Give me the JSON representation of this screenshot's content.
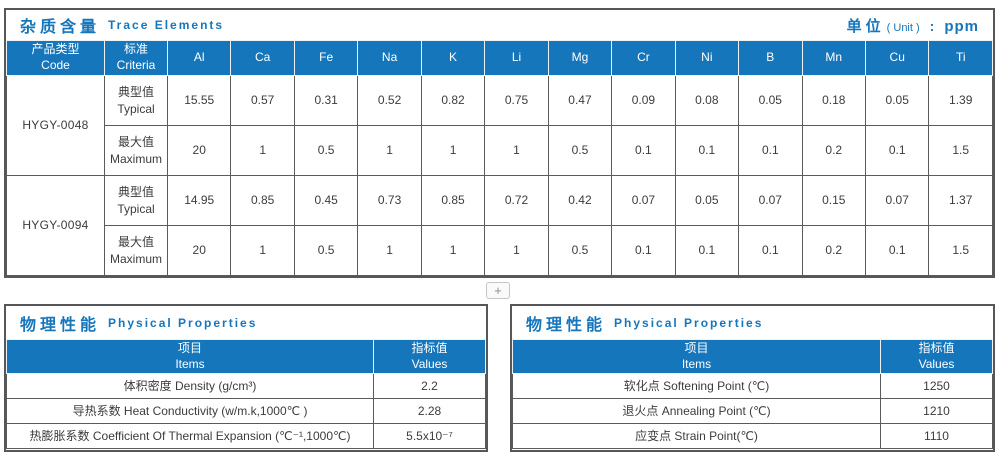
{
  "colors": {
    "accent_blue": "#1576bc",
    "header_background": "#1576bc",
    "border_dark": "#58595b",
    "body_text": "#3c3c3c"
  },
  "trace": {
    "title_zh": "杂质含量",
    "title_en": "Trace Elements",
    "unit": {
      "zh": "单位",
      "en": "( Unit )",
      "colon": ":",
      "value": "ppm"
    },
    "header": {
      "code_zh": "产品类型",
      "code_en": "Code",
      "criteria_zh": "标准",
      "criteria_en": "Criteria"
    },
    "elements": [
      "Al",
      "Ca",
      "Fe",
      "Na",
      "K",
      "Li",
      "Mg",
      "Cr",
      "Ni",
      "B",
      "Mn",
      "Cu",
      "Ti"
    ],
    "products": [
      {
        "code": "HYGY-0048",
        "rows": [
          {
            "type_zh": "典型值",
            "type_en": "Typical",
            "values": [
              "15.55",
              "0.57",
              "0.31",
              "0.52",
              "0.82",
              "0.75",
              "0.47",
              "0.09",
              "0.08",
              "0.05",
              "0.18",
              "0.05",
              "1.39"
            ]
          },
          {
            "type_zh": "最大值",
            "type_en": "Maximum",
            "values": [
              "20",
              "1",
              "0.5",
              "1",
              "1",
              "1",
              "0.5",
              "0.1",
              "0.1",
              "0.1",
              "0.2",
              "0.1",
              "1.5"
            ]
          }
        ]
      },
      {
        "code": "HYGY-0094",
        "rows": [
          {
            "type_zh": "典型值",
            "type_en": "Typical",
            "values": [
              "14.95",
              "0.85",
              "0.45",
              "0.73",
              "0.85",
              "0.72",
              "0.42",
              "0.07",
              "0.05",
              "0.07",
              "0.15",
              "0.07",
              "1.37"
            ]
          },
          {
            "type_zh": "最大值",
            "type_en": "Maximum",
            "values": [
              "20",
              "1",
              "0.5",
              "1",
              "1",
              "1",
              "0.5",
              "0.1",
              "0.1",
              "0.1",
              "0.2",
              "0.1",
              "1.5"
            ]
          }
        ]
      }
    ]
  },
  "expander": {
    "label": "+"
  },
  "physical_left": {
    "title_zh": "物理性能",
    "title_en": "Physical Properties",
    "header": {
      "items_zh": "项目",
      "items_en": "Items",
      "values_zh": "指标值",
      "values_en": "Values"
    },
    "rows": [
      {
        "item": "体积密度 Density (g/cm³)",
        "value": "2.2"
      },
      {
        "item": "导热系数 Heat Conductivity (w/m.k,1000℃ )",
        "value": "2.28"
      },
      {
        "item": "热膨胀系数 Coefficient Of Thermal Expansion (℃⁻¹,1000℃)",
        "value": "5.5x10⁻⁷"
      }
    ]
  },
  "physical_right": {
    "title_zh": "物理性能",
    "title_en": "Physical Properties",
    "header": {
      "items_zh": "项目",
      "items_en": "Items",
      "values_zh": "指标值",
      "values_en": "Values"
    },
    "rows": [
      {
        "item": "软化点 Softening Point (℃)",
        "value": "1250"
      },
      {
        "item": "退火点 Annealing Point (℃)",
        "value": "1210"
      },
      {
        "item": "应变点 Strain Point(℃)",
        "value": "1110"
      }
    ]
  }
}
